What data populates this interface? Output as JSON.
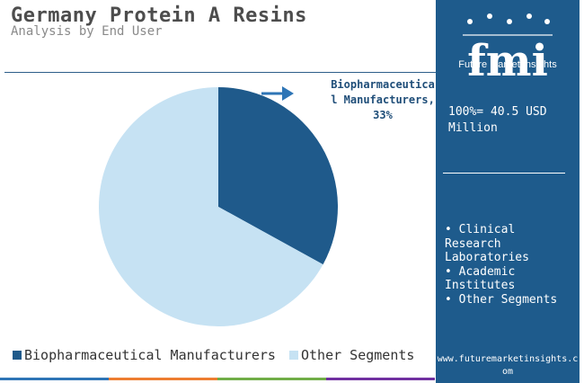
{
  "header": {
    "title": "Germany Protein A Resins",
    "subtitle": "Analysis by End User"
  },
  "chart_data": {
    "type": "pie",
    "title": "Germany Protein A Resins",
    "subtitle": "Analysis by End User",
    "categories": [
      "Biopharmaceutical Manufacturers",
      "Other Segments"
    ],
    "values": [
      33,
      67
    ],
    "unit": "%",
    "colors": [
      "#1f5a8b",
      "#c6e2f3"
    ],
    "data_labels": [
      "Biopharmaceutical Manufacturers, 33%"
    ],
    "legend": [
      "Biopharmaceutical Manufacturers",
      "Other Segments"
    ],
    "legend_position": "bottom-left"
  },
  "callout": {
    "text": "Biopharmaceutical Manufacturers, 33%"
  },
  "legend": {
    "items": [
      {
        "label": "Biopharmaceutical Manufacturers",
        "color": "#1f5a8b"
      },
      {
        "label": "Other Segments",
        "color": "#c6e2f3"
      }
    ]
  },
  "side_panel": {
    "background": "#1e5b8c",
    "logo_text": "fmi",
    "logo_subtitle": "Future Market Insights",
    "total": "100%= 40.5 USD Million",
    "segments": [
      "• Clinical Research Laboratories",
      "• Academic Institutes",
      "• Other Segments"
    ],
    "url": "www.futuremarketinsights.com"
  },
  "bottom_bar_colors": [
    "#2e75b6",
    "#ed7d31",
    "#70ad47",
    "#7030a0"
  ]
}
